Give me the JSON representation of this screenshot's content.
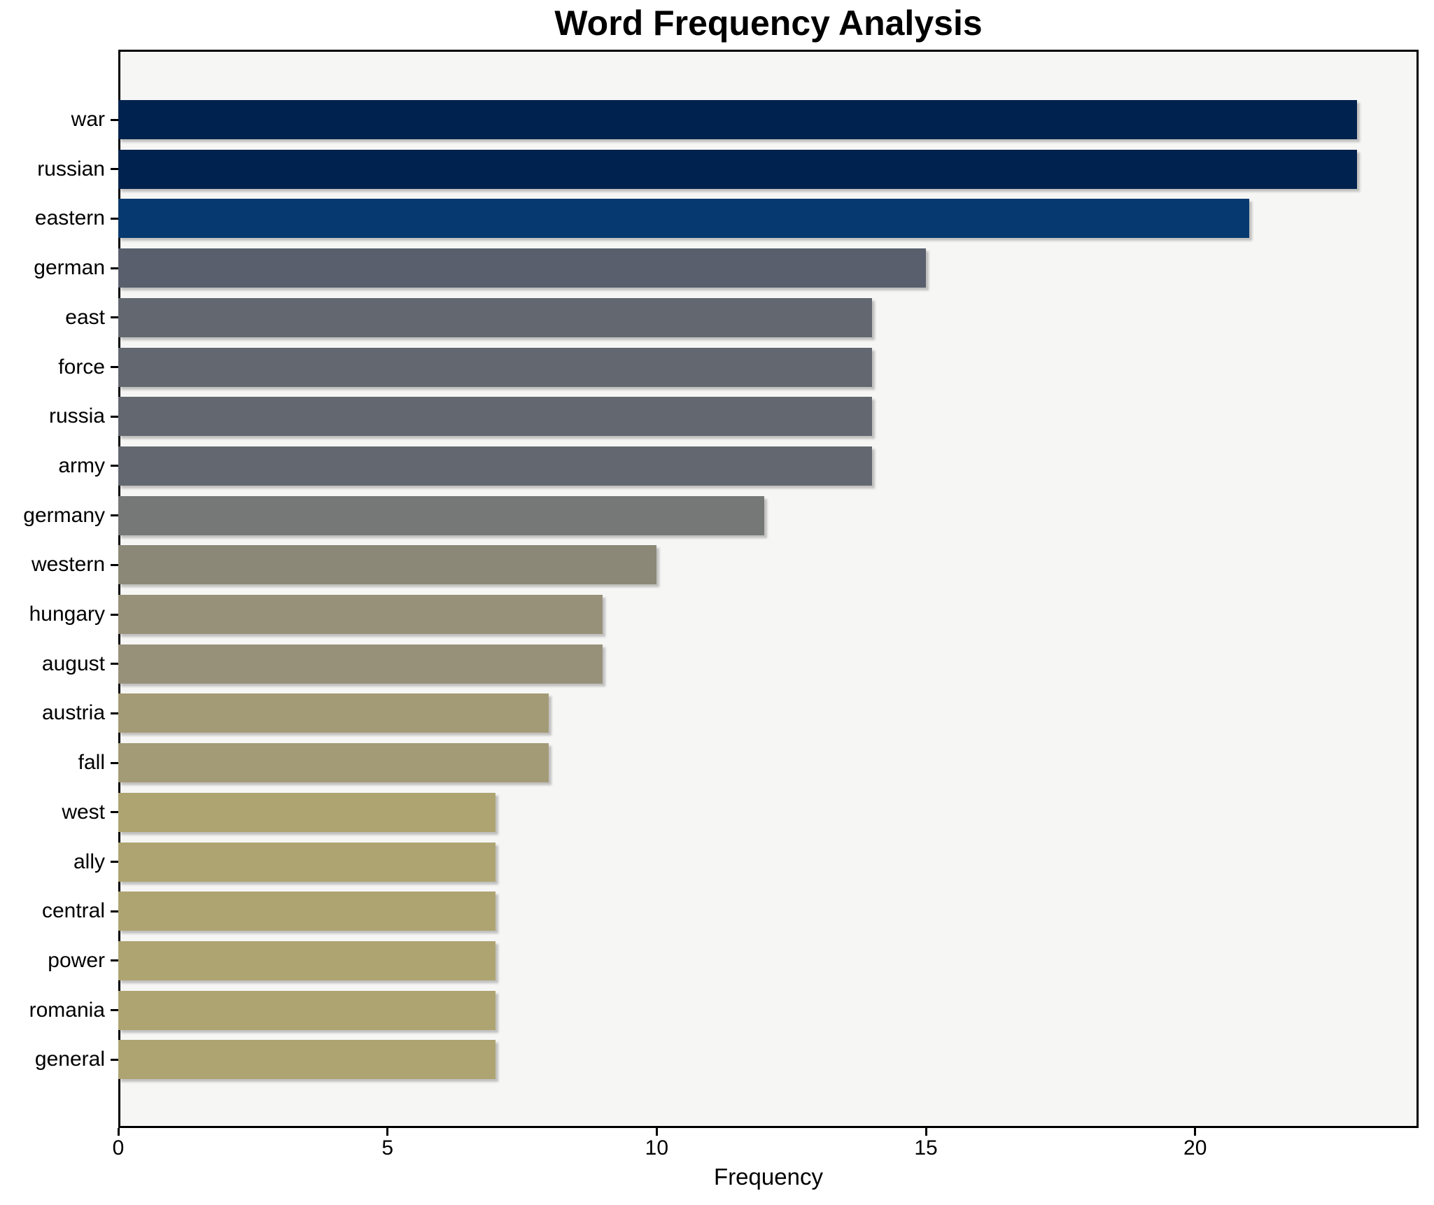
{
  "title": "Word Frequency Analysis",
  "xlabel": "Frequency",
  "chart_data": {
    "type": "bar",
    "orientation": "horizontal",
    "title": "Word Frequency Analysis",
    "xlabel": "Frequency",
    "ylabel": "",
    "grid": false,
    "legend": null,
    "plot_background": "#F6F6F5",
    "figure_background": "#FFFFFF",
    "xlim": [
      0,
      24.15
    ],
    "xticks": [
      0,
      5,
      10,
      15,
      20
    ],
    "categories": [
      "war",
      "russian",
      "eastern",
      "german",
      "east",
      "force",
      "russia",
      "army",
      "germany",
      "western",
      "hungary",
      "august",
      "austria",
      "fall",
      "west",
      "ally",
      "central",
      "power",
      "romania",
      "general"
    ],
    "values": [
      23,
      23,
      21,
      15,
      14,
      14,
      14,
      14,
      12,
      10,
      9,
      9,
      8,
      8,
      7,
      7,
      7,
      7,
      7,
      7
    ],
    "bar_colors": [
      "#00224E",
      "#00224E",
      "#05396F",
      "#5A5F6D",
      "#636770",
      "#636770",
      "#636770",
      "#636770",
      "#767777",
      "#8C8877",
      "#98917A",
      "#98917A",
      "#A39B76",
      "#A39B76",
      "#AEA471",
      "#AEA471",
      "#AEA471",
      "#AEA471",
      "#AEA471",
      "#AEA471"
    ],
    "colormap": "cividis"
  }
}
